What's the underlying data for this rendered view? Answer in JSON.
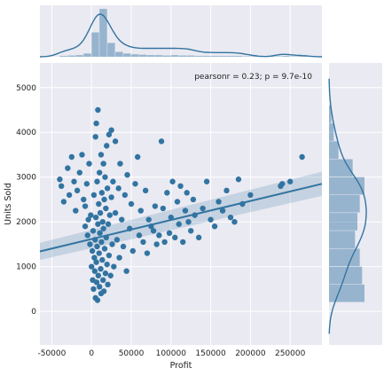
{
  "chart_data": {
    "type": "scatter",
    "xlabel": "Profit",
    "ylabel": "Units Sold",
    "xlim": [
      -65000,
      290000
    ],
    "ylim": [
      -750,
      5550
    ],
    "x_ticks": [
      -50000,
      0,
      50000,
      100000,
      150000,
      200000,
      250000
    ],
    "x_tick_labels": [
      "-50000",
      "0",
      "50000",
      "100000",
      "150000",
      "200000",
      "250000"
    ],
    "y_ticks": [
      0,
      1000,
      2000,
      3000,
      4000,
      5000
    ],
    "y_tick_labels": [
      "0",
      "1000",
      "2000",
      "3000",
      "4000",
      "5000"
    ],
    "annotation": "pearsonr = 0.23; p = 9.7e-10",
    "grid": true,
    "regression": {
      "x": [
        -65000,
        290000
      ],
      "y": [
        1340,
        2850
      ],
      "ci_lower_start": 1150,
      "ci_upper_start": 1530,
      "ci_lower_end": 2580,
      "ci_upper_end": 3120
    },
    "points": [
      [
        -40000,
        2950
      ],
      [
        -38000,
        2800
      ],
      [
        -35000,
        2450
      ],
      [
        -30000,
        3200
      ],
      [
        -28000,
        2600
      ],
      [
        -25000,
        3450
      ],
      [
        -22000,
        2900
      ],
      [
        -20000,
        2250
      ],
      [
        -18000,
        2700
      ],
      [
        -15000,
        3100
      ],
      [
        -12000,
        3500
      ],
      [
        -10000,
        2500
      ],
      [
        -8000,
        1900
      ],
      [
        -8000,
        2350
      ],
      [
        -6000,
        2850
      ],
      [
        -5000,
        1700
      ],
      [
        -4000,
        2050
      ],
      [
        -3000,
        3300
      ],
      [
        -2000,
        1500
      ],
      [
        -1000,
        2150
      ],
      [
        0,
        1000
      ],
      [
        1000,
        1350
      ],
      [
        1500,
        700
      ],
      [
        2000,
        1800
      ],
      [
        2500,
        500
      ],
      [
        3000,
        2600
      ],
      [
        3500,
        1200
      ],
      [
        4000,
        900
      ],
      [
        4500,
        1600
      ],
      [
        5000,
        300
      ],
      [
        5000,
        3900
      ],
      [
        5500,
        2100
      ],
      [
        6000,
        1100
      ],
      [
        6000,
        4200
      ],
      [
        6500,
        650
      ],
      [
        7000,
        1450
      ],
      [
        7000,
        2900
      ],
      [
        7500,
        250
      ],
      [
        8000,
        1950
      ],
      [
        8000,
        4500
      ],
      [
        8500,
        800
      ],
      [
        9000,
        2400
      ],
      [
        9500,
        1300
      ],
      [
        10000,
        3100
      ],
      [
        10000,
        550
      ],
      [
        10500,
        1750
      ],
      [
        11000,
        2200
      ],
      [
        11500,
        950
      ],
      [
        12000,
        3500
      ],
      [
        12000,
        400
      ],
      [
        12500,
        1550
      ],
      [
        13000,
        2650
      ],
      [
        13500,
        1150
      ],
      [
        14000,
        2000
      ],
      [
        14500,
        700
      ],
      [
        15000,
        3300
      ],
      [
        15000,
        1850
      ],
      [
        15500,
        450
      ],
      [
        16000,
        2500
      ],
      [
        16500,
        1400
      ],
      [
        17000,
        3000
      ],
      [
        17500,
        850
      ],
      [
        18000,
        2300
      ],
      [
        18500,
        1650
      ],
      [
        19000,
        3700
      ],
      [
        19500,
        1050
      ],
      [
        20000,
        2750
      ],
      [
        20500,
        600
      ],
      [
        21000,
        1950
      ],
      [
        22000,
        3950
      ],
      [
        22000,
        1250
      ],
      [
        23000,
        2150
      ],
      [
        24000,
        800
      ],
      [
        25000,
        2550
      ],
      [
        25000,
        4050
      ],
      [
        26000,
        1500
      ],
      [
        27000,
        2900
      ],
      [
        28000,
        1000
      ],
      [
        30000,
        3800
      ],
      [
        30000,
        2200
      ],
      [
        32000,
        1600
      ],
      [
        34000,
        2750
      ],
      [
        35000,
        1200
      ],
      [
        36000,
        3300
      ],
      [
        38000,
        2050
      ],
      [
        40000,
        1450
      ],
      [
        42000,
        2600
      ],
      [
        44000,
        900
      ],
      [
        45000,
        3050
      ],
      [
        48000,
        1850
      ],
      [
        50000,
        2400
      ],
      [
        52000,
        1350
      ],
      [
        55000,
        2850
      ],
      [
        58000,
        3450
      ],
      [
        60000,
        1700
      ],
      [
        62000,
        2250
      ],
      [
        65000,
        1550
      ],
      [
        68000,
        2700
      ],
      [
        70000,
        1300
      ],
      [
        72000,
        2050
      ],
      [
        75000,
        1900
      ],
      [
        78000,
        1800
      ],
      [
        80000,
        2350
      ],
      [
        82000,
        1500
      ],
      [
        85000,
        1700
      ],
      [
        88000,
        3800
      ],
      [
        90000,
        2300
      ],
      [
        92000,
        1550
      ],
      [
        95000,
        2650
      ],
      [
        98000,
        1750
      ],
      [
        100000,
        2100
      ],
      [
        102000,
        2900
      ],
      [
        105000,
        1650
      ],
      [
        108000,
        2450
      ],
      [
        110000,
        1950
      ],
      [
        112000,
        2800
      ],
      [
        115000,
        1550
      ],
      [
        118000,
        2250
      ],
      [
        120000,
        2650
      ],
      [
        122000,
        2000
      ],
      [
        125000,
        1800
      ],
      [
        128000,
        2500
      ],
      [
        130000,
        2150
      ],
      [
        135000,
        1650
      ],
      [
        140000,
        2300
      ],
      [
        145000,
        2900
      ],
      [
        150000,
        2050
      ],
      [
        155000,
        1900
      ],
      [
        160000,
        2450
      ],
      [
        165000,
        2250
      ],
      [
        170000,
        2700
      ],
      [
        175000,
        2100
      ],
      [
        180000,
        2000
      ],
      [
        185000,
        2950
      ],
      [
        190000,
        2400
      ],
      [
        200000,
        2600
      ],
      [
        238000,
        2800
      ],
      [
        240000,
        2850
      ],
      [
        250000,
        2900
      ],
      [
        265000,
        3450
      ]
    ],
    "x_hist": {
      "bin_edges": [
        -40000,
        -30000,
        -20000,
        -10000,
        0,
        10000,
        20000,
        30000,
        40000,
        50000,
        60000,
        70000,
        80000,
        90000,
        100000,
        110000,
        120000,
        130000,
        140000,
        150000,
        160000,
        170000,
        180000,
        190000,
        200000,
        210000,
        220000,
        230000,
        240000,
        250000,
        260000,
        270000
      ],
      "counts": [
        2,
        3,
        4,
        8,
        60,
        118,
        34,
        12,
        8,
        6,
        5,
        4,
        4,
        3,
        4,
        3,
        3,
        2,
        2,
        2,
        2,
        2,
        2,
        1,
        1,
        1,
        1,
        1,
        2,
        1,
        1
      ]
    },
    "y_hist": {
      "bin_edges": [
        200,
        600,
        1000,
        1400,
        1800,
        2200,
        2600,
        3000,
        3400,
        3800,
        4200,
        4600
      ],
      "counts": [
        30,
        28,
        26,
        22,
        24,
        26,
        30,
        20,
        8,
        4,
        2
      ]
    }
  }
}
